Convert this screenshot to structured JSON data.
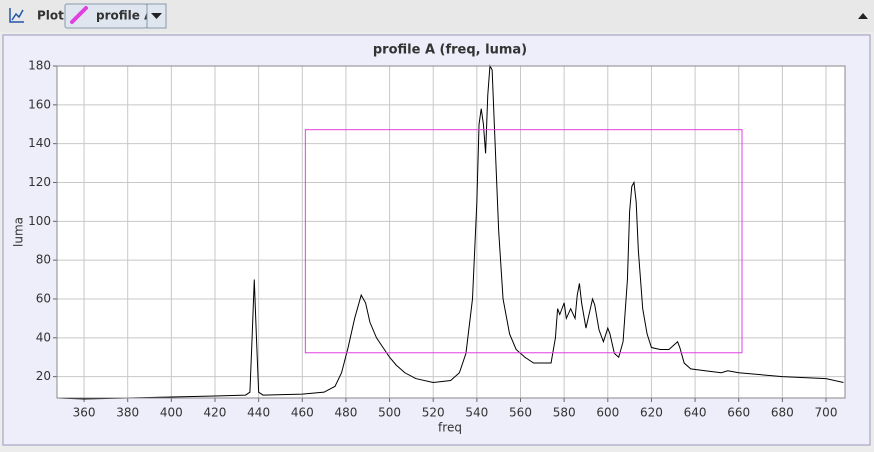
{
  "toolbar": {
    "label": "Plot",
    "profile": "profile A"
  },
  "chart_data": {
    "type": "line",
    "title": "profile A (freq, luma)",
    "x_label": "freq",
    "y_label": "luma",
    "xlim": [
      347.6,
      708.7
    ],
    "ylim": [
      9,
      180
    ],
    "xticks": [
      360,
      380,
      400,
      420,
      440,
      460,
      480,
      500,
      520,
      540,
      560,
      580,
      600,
      620,
      640,
      660,
      680,
      700
    ],
    "yticks": [
      20,
      40,
      60,
      80,
      100,
      120,
      140,
      160,
      180
    ],
    "grid": true,
    "roi": {
      "x": [
        461.4,
        661.5
      ],
      "y": [
        32.3,
        147.2
      ],
      "color": "#e040e0"
    },
    "series": [
      {
        "color": "#000000",
        "x": [
          348,
          360,
          380,
          400,
          420,
          434,
          436,
          437,
          438,
          439,
          440,
          442,
          460,
          470,
          475,
          478,
          481,
          484,
          486,
          487,
          489,
          491,
          494,
          497,
          500,
          503,
          507,
          512,
          520,
          528,
          532,
          535,
          538,
          540,
          541,
          542,
          543,
          544,
          545,
          546,
          547,
          548,
          550,
          552,
          555,
          558,
          562,
          566,
          570,
          574,
          576,
          577,
          578,
          580,
          581,
          583,
          585,
          586,
          587,
          588,
          590,
          592,
          593,
          594,
          596,
          598,
          600,
          601,
          603,
          605,
          607,
          609,
          610,
          611,
          612,
          613,
          614,
          616,
          618,
          620,
          624,
          628,
          630,
          632,
          633,
          635,
          638,
          645,
          652,
          655,
          660,
          680,
          700,
          708
        ],
        "values": [
          9,
          8.5,
          9,
          9.5,
          10,
          10.5,
          12,
          40,
          70,
          40,
          12,
          10.5,
          11,
          12,
          15,
          22,
          35,
          50,
          58,
          62,
          58,
          48,
          40,
          35,
          30,
          26,
          22,
          19,
          17,
          18,
          22,
          32,
          60,
          110,
          150,
          158,
          150,
          135,
          165,
          180,
          178,
          150,
          95,
          60,
          42,
          34,
          30,
          27,
          27,
          27,
          40,
          55,
          52,
          58,
          50,
          55,
          50,
          62,
          68,
          58,
          45,
          55,
          60,
          57,
          44,
          38,
          45,
          42,
          32,
          30,
          38,
          70,
          105,
          118,
          120,
          110,
          85,
          55,
          42,
          35,
          34,
          34,
          36,
          38,
          35,
          27,
          24,
          23,
          22,
          23,
          22,
          20,
          19,
          17
        ]
      }
    ]
  }
}
